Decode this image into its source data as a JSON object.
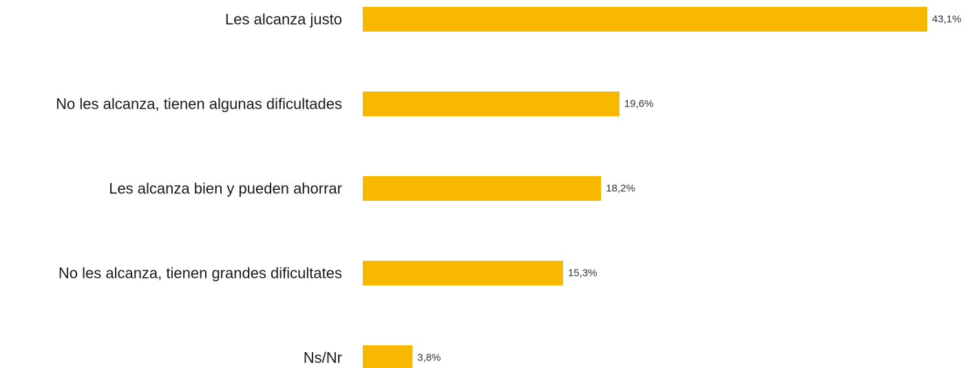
{
  "chart_data": {
    "type": "bar",
    "orientation": "horizontal",
    "categories": [
      "Les alcanza justo",
      "No les alcanza, tienen algunas dificultades",
      "Les alcanza bien y pueden ahorrar",
      "No les alcanza, tienen grandes dificultates",
      "Ns/Nr"
    ],
    "values": [
      43.1,
      19.6,
      18.2,
      15.3,
      3.8
    ],
    "value_labels": [
      "43,1%",
      "19,6%",
      "18,2%",
      "15,3%",
      "3,8%"
    ],
    "unit": "%",
    "xlim": [
      0,
      43.1
    ],
    "bar_color": "#F9B800",
    "grid": false,
    "legend": "none"
  }
}
